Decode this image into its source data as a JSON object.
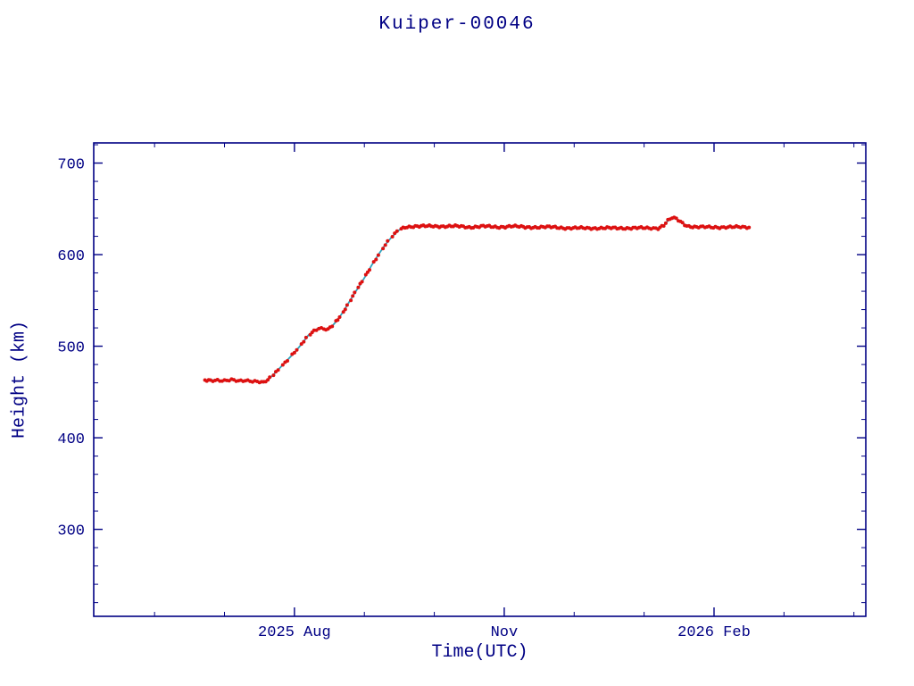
{
  "chart_data": {
    "type": "scatter",
    "title": "Kuiper-00046",
    "xlabel": "Time(UTC)",
    "ylabel": "Height (km)",
    "grid": false,
    "legend": null,
    "x_axis": {
      "unit": "months since 2025-06-01",
      "lim": [
        -0.87,
        10.17
      ],
      "major_ticks": [
        {
          "pos": 2,
          "label": "2025 Aug"
        },
        {
          "pos": 5,
          "label": "Nov"
        },
        {
          "pos": 8,
          "label": "2026 Feb"
        }
      ],
      "minor_step": 1
    },
    "y_axis": {
      "unit": "km",
      "lim": [
        205,
        722
      ],
      "major_ticks": [
        300,
        400,
        500,
        600,
        700
      ],
      "minor_step": 20
    },
    "colors": {
      "axis": "#000084",
      "text": "#000084",
      "trace": "#dd1111",
      "underlay": "#2fa3bd",
      "background": "#ffffff"
    },
    "series": [
      {
        "name": "height_km",
        "style": "dense-scatter-over-line",
        "points": [
          [
            0.72,
            463
          ],
          [
            0.8,
            463
          ],
          [
            0.9,
            463
          ],
          [
            1.0,
            462
          ],
          [
            1.1,
            463
          ],
          [
            1.2,
            462
          ],
          [
            1.3,
            463
          ],
          [
            1.4,
            462
          ],
          [
            1.5,
            461
          ],
          [
            1.56,
            460
          ],
          [
            1.62,
            463
          ],
          [
            1.7,
            469
          ],
          [
            1.8,
            477
          ],
          [
            1.9,
            485
          ],
          [
            2.0,
            493
          ],
          [
            2.1,
            502
          ],
          [
            2.2,
            512
          ],
          [
            2.28,
            517
          ],
          [
            2.35,
            520
          ],
          [
            2.42,
            519
          ],
          [
            2.48,
            518
          ],
          [
            2.54,
            522
          ],
          [
            2.62,
            529
          ],
          [
            2.7,
            538
          ],
          [
            2.78,
            548
          ],
          [
            2.86,
            558
          ],
          [
            2.94,
            567
          ],
          [
            3.02,
            577
          ],
          [
            3.1,
            588
          ],
          [
            3.2,
            600
          ],
          [
            3.3,
            611
          ],
          [
            3.4,
            620
          ],
          [
            3.5,
            627
          ],
          [
            3.58,
            630
          ],
          [
            3.7,
            631
          ],
          [
            3.9,
            631
          ],
          [
            4.1,
            631
          ],
          [
            4.3,
            631
          ],
          [
            4.5,
            630
          ],
          [
            4.7,
            631
          ],
          [
            4.9,
            630
          ],
          [
            5.1,
            631
          ],
          [
            5.3,
            630
          ],
          [
            5.5,
            630
          ],
          [
            5.7,
            630
          ],
          [
            5.9,
            629
          ],
          [
            6.1,
            629
          ],
          [
            6.3,
            629
          ],
          [
            6.5,
            629
          ],
          [
            6.7,
            629
          ],
          [
            6.9,
            629
          ],
          [
            7.1,
            629
          ],
          [
            7.2,
            629
          ],
          [
            7.28,
            632
          ],
          [
            7.34,
            637
          ],
          [
            7.4,
            640
          ],
          [
            7.46,
            639
          ],
          [
            7.52,
            636
          ],
          [
            7.58,
            633
          ],
          [
            7.64,
            631
          ],
          [
            7.75,
            630
          ],
          [
            7.9,
            630
          ],
          [
            8.05,
            630
          ],
          [
            8.2,
            630
          ],
          [
            8.35,
            630
          ],
          [
            8.5,
            630
          ]
        ]
      }
    ]
  }
}
